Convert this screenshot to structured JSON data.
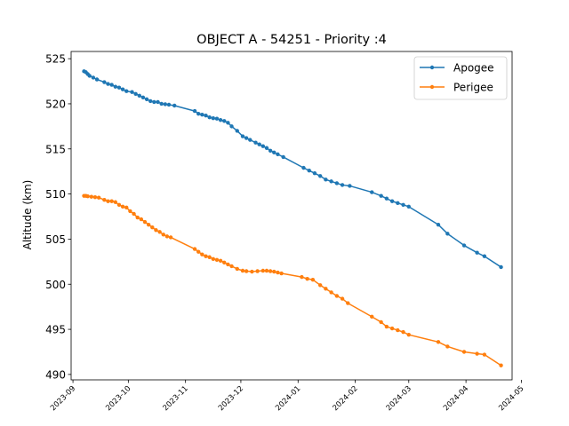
{
  "chart_data": {
    "type": "line",
    "title": "OBJECT A - 54251 - Priority :4",
    "xlabel": "",
    "ylabel": "Altitude (km)",
    "ylim": [
      489.4,
      525.8
    ],
    "xlim": [
      "2023-08-31",
      "2024-04-26"
    ],
    "grid": false,
    "legend_position": "top-right",
    "x_ticks": [
      "2023-09",
      "2023-10",
      "2023-11",
      "2023-12",
      "2024-01",
      "2024-02",
      "2024-03",
      "2024-04",
      "2024-05"
    ],
    "y_ticks": [
      490,
      495,
      500,
      505,
      510,
      515,
      520,
      525
    ],
    "series": [
      {
        "name": "Apogee",
        "color": "#1f77b4",
        "points": [
          [
            "2023-09-07",
            523.6
          ],
          [
            "2023-09-08",
            523.5
          ],
          [
            "2023-09-09",
            523.3
          ],
          [
            "2023-09-10",
            523.1
          ],
          [
            "2023-09-12",
            522.9
          ],
          [
            "2023-09-14",
            522.7
          ],
          [
            "2023-09-18",
            522.4
          ],
          [
            "2023-09-20",
            522.2
          ],
          [
            "2023-09-22",
            522.1
          ],
          [
            "2023-09-24",
            521.9
          ],
          [
            "2023-09-26",
            521.8
          ],
          [
            "2023-09-28",
            521.6
          ],
          [
            "2023-09-30",
            521.4
          ],
          [
            "2023-10-03",
            521.3
          ],
          [
            "2023-10-05",
            521.1
          ],
          [
            "2023-10-07",
            520.9
          ],
          [
            "2023-10-09",
            520.7
          ],
          [
            "2023-10-11",
            520.5
          ],
          [
            "2023-10-13",
            520.3
          ],
          [
            "2023-10-15",
            520.2
          ],
          [
            "2023-10-17",
            520.2
          ],
          [
            "2023-10-19",
            520.0
          ],
          [
            "2023-10-21",
            519.95
          ],
          [
            "2023-10-23",
            519.9
          ],
          [
            "2023-10-26",
            519.8
          ],
          [
            "2023-11-06",
            519.2
          ],
          [
            "2023-11-08",
            518.9
          ],
          [
            "2023-11-10",
            518.8
          ],
          [
            "2023-11-12",
            518.7
          ],
          [
            "2023-11-14",
            518.5
          ],
          [
            "2023-11-16",
            518.4
          ],
          [
            "2023-11-18",
            518.35
          ],
          [
            "2023-11-20",
            518.2
          ],
          [
            "2023-11-22",
            518.1
          ],
          [
            "2023-11-24",
            517.9
          ],
          [
            "2023-11-26",
            517.5
          ],
          [
            "2023-11-29",
            517.0
          ],
          [
            "2023-12-02",
            516.4
          ],
          [
            "2023-12-04",
            516.2
          ],
          [
            "2023-12-06",
            516.0
          ],
          [
            "2023-12-09",
            515.7
          ],
          [
            "2023-12-11",
            515.5
          ],
          [
            "2023-12-13",
            515.3
          ],
          [
            "2023-12-15",
            515.1
          ],
          [
            "2023-12-17",
            514.8
          ],
          [
            "2023-12-19",
            514.6
          ],
          [
            "2023-12-21",
            514.4
          ],
          [
            "2023-12-24",
            514.1
          ],
          [
            "2024-01-04",
            512.9
          ],
          [
            "2024-01-07",
            512.6
          ],
          [
            "2024-01-10",
            512.3
          ],
          [
            "2024-01-13",
            512.0
          ],
          [
            "2024-01-16",
            511.6
          ],
          [
            "2024-01-19",
            511.4
          ],
          [
            "2024-01-22",
            511.2
          ],
          [
            "2024-01-25",
            511.0
          ],
          [
            "2024-01-29",
            510.9
          ],
          [
            "2024-02-10",
            510.2
          ],
          [
            "2024-02-15",
            509.8
          ],
          [
            "2024-02-18",
            509.5
          ],
          [
            "2024-02-21",
            509.2
          ],
          [
            "2024-02-24",
            509.0
          ],
          [
            "2024-02-27",
            508.8
          ],
          [
            "2024-03-01",
            508.6
          ],
          [
            "2024-03-17",
            506.6
          ],
          [
            "2024-03-22",
            505.6
          ],
          [
            "2024-03-31",
            504.3
          ],
          [
            "2024-04-07",
            503.5
          ],
          [
            "2024-04-11",
            503.1
          ],
          [
            "2024-04-20",
            501.9
          ]
        ]
      },
      {
        "name": "Perigee",
        "color": "#ff7f0e",
        "points": [
          [
            "2023-09-07",
            509.8
          ],
          [
            "2023-09-08",
            509.8
          ],
          [
            "2023-09-09",
            509.75
          ],
          [
            "2023-09-11",
            509.7
          ],
          [
            "2023-09-13",
            509.65
          ],
          [
            "2023-09-15",
            509.6
          ],
          [
            "2023-09-18",
            509.35
          ],
          [
            "2023-09-20",
            509.2
          ],
          [
            "2023-09-22",
            509.2
          ],
          [
            "2023-09-24",
            509.1
          ],
          [
            "2023-09-26",
            508.8
          ],
          [
            "2023-09-28",
            508.6
          ],
          [
            "2023-09-30",
            508.5
          ],
          [
            "2023-10-02",
            508.1
          ],
          [
            "2023-10-04",
            507.8
          ],
          [
            "2023-10-06",
            507.4
          ],
          [
            "2023-10-08",
            507.2
          ],
          [
            "2023-10-10",
            506.9
          ],
          [
            "2023-10-12",
            506.6
          ],
          [
            "2023-10-14",
            506.3
          ],
          [
            "2023-10-16",
            506.0
          ],
          [
            "2023-10-18",
            505.8
          ],
          [
            "2023-10-20",
            505.5
          ],
          [
            "2023-10-22",
            505.3
          ],
          [
            "2023-10-24",
            505.2
          ],
          [
            "2023-11-06",
            503.9
          ],
          [
            "2023-11-08",
            503.6
          ],
          [
            "2023-11-10",
            503.3
          ],
          [
            "2023-11-12",
            503.1
          ],
          [
            "2023-11-14",
            503.0
          ],
          [
            "2023-11-16",
            502.8
          ],
          [
            "2023-11-18",
            502.7
          ],
          [
            "2023-11-20",
            502.6
          ],
          [
            "2023-11-22",
            502.4
          ],
          [
            "2023-11-24",
            502.2
          ],
          [
            "2023-11-26",
            502.0
          ],
          [
            "2023-11-29",
            501.7
          ],
          [
            "2023-12-02",
            501.5
          ],
          [
            "2023-12-04",
            501.45
          ],
          [
            "2023-12-07",
            501.4
          ],
          [
            "2023-12-10",
            501.45
          ],
          [
            "2023-12-13",
            501.5
          ],
          [
            "2023-12-15",
            501.5
          ],
          [
            "2023-12-17",
            501.45
          ],
          [
            "2023-12-19",
            501.4
          ],
          [
            "2023-12-21",
            501.3
          ],
          [
            "2023-12-23",
            501.2
          ],
          [
            "2024-01-03",
            500.8
          ],
          [
            "2024-01-06",
            500.6
          ],
          [
            "2024-01-09",
            500.5
          ],
          [
            "2024-01-13",
            499.9
          ],
          [
            "2024-01-16",
            499.5
          ],
          [
            "2024-01-19",
            499.1
          ],
          [
            "2024-01-22",
            498.7
          ],
          [
            "2024-01-25",
            498.4
          ],
          [
            "2024-01-28",
            497.9
          ],
          [
            "2024-02-10",
            496.4
          ],
          [
            "2024-02-15",
            495.8
          ],
          [
            "2024-02-18",
            495.3
          ],
          [
            "2024-02-21",
            495.1
          ],
          [
            "2024-02-24",
            494.9
          ],
          [
            "2024-02-27",
            494.7
          ],
          [
            "2024-03-01",
            494.4
          ],
          [
            "2024-03-17",
            493.6
          ],
          [
            "2024-03-22",
            493.1
          ],
          [
            "2024-03-31",
            492.5
          ],
          [
            "2024-04-07",
            492.3
          ],
          [
            "2024-04-11",
            492.2
          ],
          [
            "2024-04-20",
            491.0
          ]
        ]
      }
    ]
  }
}
